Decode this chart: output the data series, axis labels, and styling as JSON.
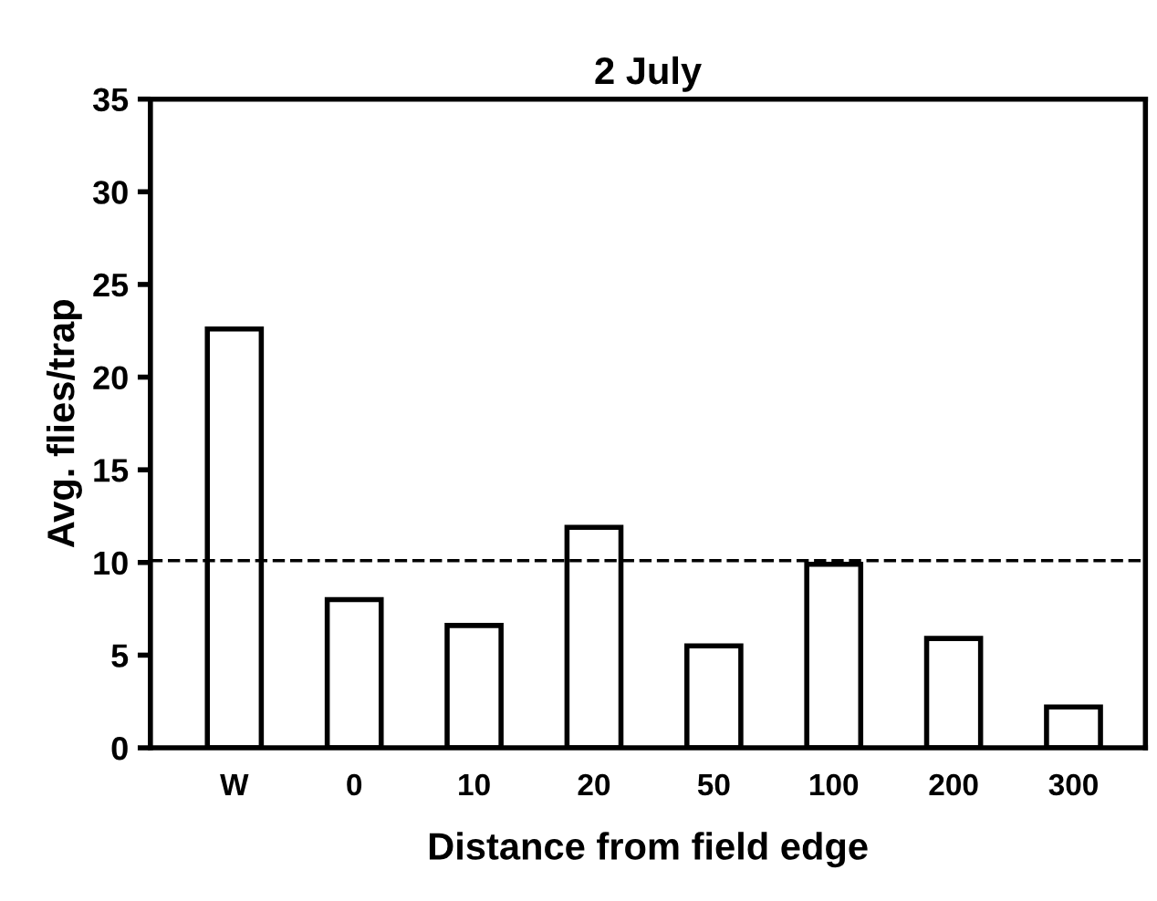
{
  "chart_data": {
    "type": "bar",
    "title": "2 July",
    "xlabel": "Distance from field edge",
    "ylabel": "Avg. flies/trap",
    "categories": [
      "W",
      "0",
      "10",
      "20",
      "50",
      "100",
      "200",
      "300"
    ],
    "values": [
      22.6,
      8.0,
      6.6,
      11.9,
      5.5,
      9.9,
      5.9,
      2.2
    ],
    "color": "#ffffff",
    "ylim": [
      0,
      35
    ],
    "yticks": [
      0,
      5,
      10,
      15,
      20,
      25,
      30,
      35
    ],
    "grid": false,
    "ref_lines": [
      {
        "axis": "y",
        "value": 10.1,
        "line_style": "dashed",
        "color": "#000000"
      }
    ]
  }
}
